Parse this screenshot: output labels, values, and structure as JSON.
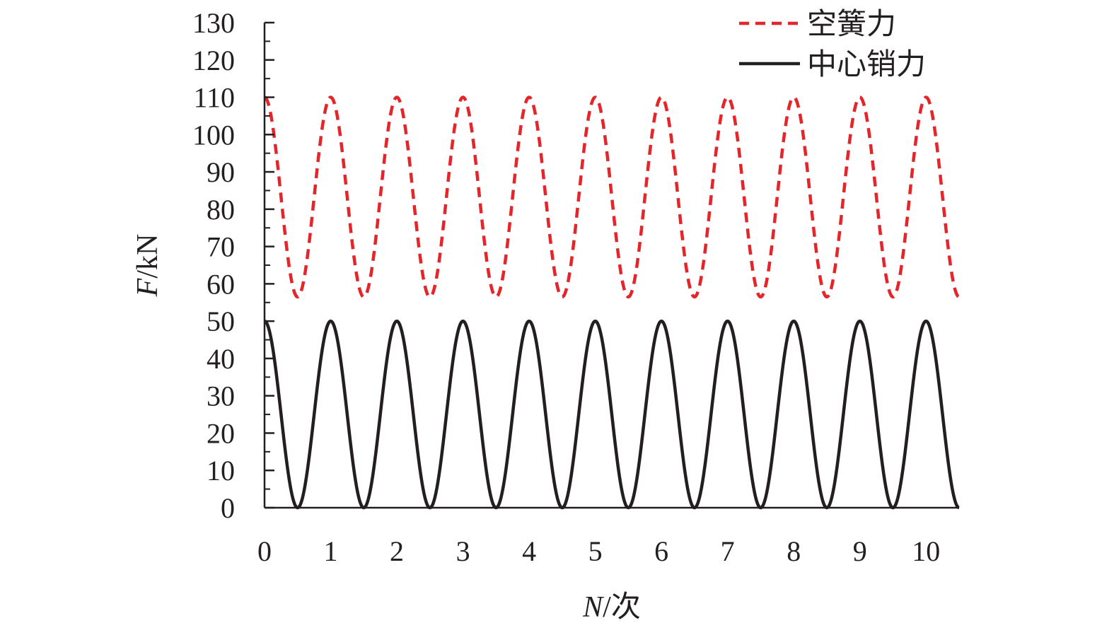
{
  "chart_data": {
    "type": "line",
    "xlabel": {
      "var": "N",
      "unit": "/次"
    },
    "ylabel": {
      "var": "F",
      "unit": "/kN"
    },
    "xlim": [
      0,
      10.5
    ],
    "ylim": [
      0,
      130
    ],
    "x_ticks": [
      0,
      1,
      2,
      3,
      4,
      5,
      6,
      7,
      8,
      9,
      10
    ],
    "y_ticks": [
      0,
      10,
      20,
      30,
      40,
      50,
      60,
      70,
      80,
      90,
      100,
      110,
      120,
      130
    ],
    "grid": false,
    "legend_position": "top-right",
    "series": [
      {
        "name": "空簧力",
        "style": "dashed",
        "color": "#e4262b",
        "waveform": "cosine",
        "period": 1,
        "max": 110,
        "min": 56.5,
        "phase_at_max": 0,
        "x_range": [
          0,
          10.5
        ]
      },
      {
        "name": "中心销力",
        "style": "solid",
        "color": "#231f20",
        "waveform": "cosine",
        "period": 1,
        "max": 50,
        "min": 0,
        "phase_at_max": 0,
        "x_range": [
          0,
          10.5
        ]
      }
    ]
  }
}
